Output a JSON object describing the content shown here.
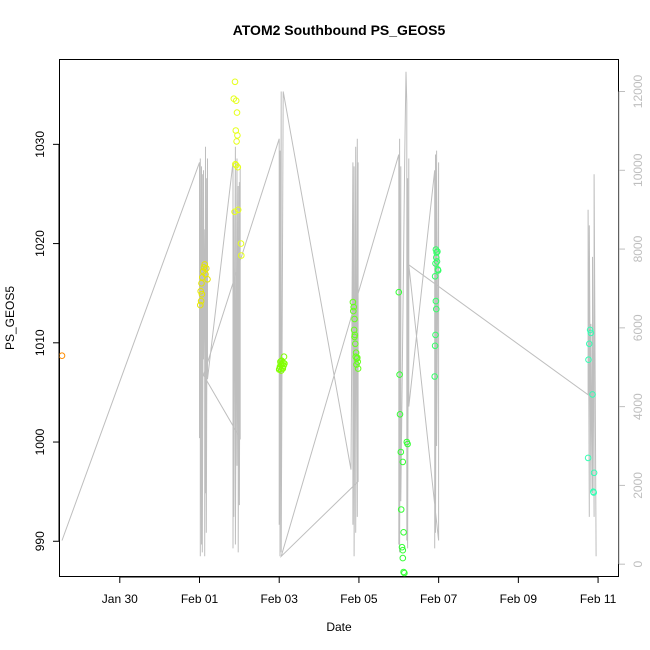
{
  "chart_data": {
    "type": "scatter",
    "title": "ATOM2 Southbound PS_GEOS5",
    "xlabel": "Date",
    "ylabel": "PS_GEOS5",
    "x_ticks": [
      {
        "value": 2.0,
        "label": "Jan 30"
      },
      {
        "value": 4.0,
        "label": "Feb 01"
      },
      {
        "value": 6.0,
        "label": "Feb 03"
      },
      {
        "value": 8.0,
        "label": "Feb 05"
      },
      {
        "value": 10.0,
        "label": "Feb 07"
      },
      {
        "value": 12.0,
        "label": "Feb 09"
      },
      {
        "value": 14.0,
        "label": "Feb 11"
      }
    ],
    "xlim": [
      0.5,
      14.5
    ],
    "y_ticks": [
      {
        "value": 990,
        "label": "990"
      },
      {
        "value": 1000,
        "label": "1000"
      },
      {
        "value": 1010,
        "label": "1010"
      },
      {
        "value": 1020,
        "label": "1020"
      },
      {
        "value": 1030,
        "label": "1030"
      }
    ],
    "ylim": [
      986.5,
      1038.5
    ],
    "y2_ticks": [
      {
        "value": 0,
        "label": "0"
      },
      {
        "value": 2000,
        "label": "2000"
      },
      {
        "value": 4000,
        "label": "4000"
      },
      {
        "value": 6000,
        "label": "6000"
      },
      {
        "value": 8000,
        "label": "8000"
      },
      {
        "value": 10000,
        "label": "10000"
      },
      {
        "value": 12000,
        "label": "12000"
      }
    ],
    "y2lim": [
      -300,
      12800
    ],
    "grid": false,
    "points": [
      {
        "x": 0.55,
        "y": 1008.7,
        "color": "#ff8c00"
      },
      {
        "x": 4.02,
        "y": 1013.8,
        "color": "#e6e600"
      },
      {
        "x": 4.04,
        "y": 1014.2,
        "color": "#e6e600"
      },
      {
        "x": 4.05,
        "y": 1016.0,
        "color": "#e6e600"
      },
      {
        "x": 4.07,
        "y": 1016.6,
        "color": "#e6e600"
      },
      {
        "x": 4.09,
        "y": 1017.2,
        "color": "#e6e600"
      },
      {
        "x": 4.11,
        "y": 1017.6,
        "color": "#e6e600"
      },
      {
        "x": 4.13,
        "y": 1017.9,
        "color": "#e6e600"
      },
      {
        "x": 4.15,
        "y": 1016.9,
        "color": "#e6e600"
      },
      {
        "x": 4.17,
        "y": 1017.5,
        "color": "#e6e600"
      },
      {
        "x": 4.2,
        "y": 1016.4,
        "color": "#e6e600"
      },
      {
        "x": 4.03,
        "y": 1015.2,
        "color": "#e6e600"
      },
      {
        "x": 4.06,
        "y": 1014.9,
        "color": "#e6e600"
      },
      {
        "x": 4.89,
        "y": 1036.3,
        "color": "#e6ff1a"
      },
      {
        "x": 4.86,
        "y": 1034.6,
        "color": "#e6ff1a"
      },
      {
        "x": 4.92,
        "y": 1034.4,
        "color": "#e6ff1a"
      },
      {
        "x": 4.94,
        "y": 1033.2,
        "color": "#e6ff1a"
      },
      {
        "x": 4.91,
        "y": 1031.4,
        "color": "#e6ff1a"
      },
      {
        "x": 4.95,
        "y": 1030.9,
        "color": "#e6ff1a"
      },
      {
        "x": 4.93,
        "y": 1030.3,
        "color": "#e6ff1a"
      },
      {
        "x": 4.9,
        "y": 1028.0,
        "color": "#e6ff1a"
      },
      {
        "x": 4.96,
        "y": 1027.7,
        "color": "#e6ff1a"
      },
      {
        "x": 4.92,
        "y": 1027.9,
        "color": "#e6ff1a"
      },
      {
        "x": 4.88,
        "y": 1023.2,
        "color": "#e6ff1a"
      },
      {
        "x": 4.97,
        "y": 1023.4,
        "color": "#e6ff1a"
      },
      {
        "x": 5.04,
        "y": 1020.0,
        "color": "#e6ff1a"
      },
      {
        "x": 5.05,
        "y": 1018.8,
        "color": "#e6ff1a"
      },
      {
        "x": 6.0,
        "y": 1007.3,
        "color": "#80ff00"
      },
      {
        "x": 6.02,
        "y": 1007.6,
        "color": "#80ff00"
      },
      {
        "x": 6.04,
        "y": 1007.9,
        "color": "#80ff00"
      },
      {
        "x": 6.06,
        "y": 1008.2,
        "color": "#80ff00"
      },
      {
        "x": 6.08,
        "y": 1007.5,
        "color": "#80ff00"
      },
      {
        "x": 6.1,
        "y": 1008.0,
        "color": "#80ff00"
      },
      {
        "x": 6.12,
        "y": 1008.6,
        "color": "#80ff00"
      },
      {
        "x": 6.05,
        "y": 1007.2,
        "color": "#80ff00"
      },
      {
        "x": 6.07,
        "y": 1007.8,
        "color": "#80ff00"
      },
      {
        "x": 6.09,
        "y": 1007.4,
        "color": "#80ff00"
      },
      {
        "x": 6.03,
        "y": 1008.1,
        "color": "#80ff00"
      },
      {
        "x": 6.11,
        "y": 1007.7,
        "color": "#80ff00"
      },
      {
        "x": 6.13,
        "y": 1007.9,
        "color": "#80ff00"
      },
      {
        "x": 6.01,
        "y": 1007.4,
        "color": "#80ff00"
      },
      {
        "x": 7.85,
        "y": 1014.1,
        "color": "#66ff1a"
      },
      {
        "x": 7.87,
        "y": 1013.6,
        "color": "#66ff1a"
      },
      {
        "x": 7.86,
        "y": 1013.2,
        "color": "#66ff1a"
      },
      {
        "x": 7.89,
        "y": 1012.4,
        "color": "#66ff1a"
      },
      {
        "x": 7.88,
        "y": 1011.3,
        "color": "#66ff1a"
      },
      {
        "x": 7.9,
        "y": 1010.8,
        "color": "#66ff1a"
      },
      {
        "x": 7.91,
        "y": 1009.9,
        "color": "#66ff1a"
      },
      {
        "x": 7.93,
        "y": 1009.0,
        "color": "#66ff1a"
      },
      {
        "x": 7.92,
        "y": 1008.6,
        "color": "#66ff1a"
      },
      {
        "x": 7.95,
        "y": 1008.4,
        "color": "#66ff1a"
      },
      {
        "x": 7.97,
        "y": 1008.1,
        "color": "#66ff1a"
      },
      {
        "x": 7.98,
        "y": 1007.4,
        "color": "#66ff1a"
      },
      {
        "x": 7.94,
        "y": 1007.8,
        "color": "#66ff1a"
      },
      {
        "x": 7.96,
        "y": 1008.5,
        "color": "#66ff1a"
      },
      {
        "x": 7.89,
        "y": 1010.6,
        "color": "#66ff1a"
      },
      {
        "x": 9.0,
        "y": 1015.1,
        "color": "#33ff33"
      },
      {
        "x": 9.02,
        "y": 1006.8,
        "color": "#33ff33"
      },
      {
        "x": 9.03,
        "y": 1002.8,
        "color": "#33ff33"
      },
      {
        "x": 9.05,
        "y": 999.0,
        "color": "#33ff33"
      },
      {
        "x": 9.1,
        "y": 998.0,
        "color": "#33ff33"
      },
      {
        "x": 9.2,
        "y": 1000.0,
        "color": "#33ff33"
      },
      {
        "x": 9.22,
        "y": 999.8,
        "color": "#33ff33"
      },
      {
        "x": 9.06,
        "y": 993.2,
        "color": "#33ff33"
      },
      {
        "x": 9.12,
        "y": 990.9,
        "color": "#33ff33"
      },
      {
        "x": 9.08,
        "y": 989.4,
        "color": "#33ff33"
      },
      {
        "x": 9.1,
        "y": 989.1,
        "color": "#33ff33"
      },
      {
        "x": 9.1,
        "y": 988.3,
        "color": "#33ff33"
      },
      {
        "x": 9.12,
        "y": 986.9,
        "color": "#33ff33"
      },
      {
        "x": 9.14,
        "y": 986.8,
        "color": "#33ff33"
      },
      {
        "x": 9.93,
        "y": 1019.4,
        "color": "#33ff66"
      },
      {
        "x": 9.95,
        "y": 1019.1,
        "color": "#33ff66"
      },
      {
        "x": 9.97,
        "y": 1019.2,
        "color": "#33ff66"
      },
      {
        "x": 9.94,
        "y": 1018.6,
        "color": "#33ff66"
      },
      {
        "x": 9.96,
        "y": 1018.2,
        "color": "#33ff66"
      },
      {
        "x": 9.92,
        "y": 1018.0,
        "color": "#33ff66"
      },
      {
        "x": 9.98,
        "y": 1017.4,
        "color": "#33ff66"
      },
      {
        "x": 9.99,
        "y": 1017.3,
        "color": "#33ff66"
      },
      {
        "x": 9.91,
        "y": 1016.7,
        "color": "#33ff66"
      },
      {
        "x": 9.93,
        "y": 1014.2,
        "color": "#33ff66"
      },
      {
        "x": 9.94,
        "y": 1013.4,
        "color": "#33ff66"
      },
      {
        "x": 9.92,
        "y": 1010.8,
        "color": "#33ff66"
      },
      {
        "x": 9.91,
        "y": 1009.7,
        "color": "#33ff66"
      },
      {
        "x": 9.9,
        "y": 1006.6,
        "color": "#33ff66"
      },
      {
        "x": 13.8,
        "y": 1011.3,
        "color": "#33ffb3"
      },
      {
        "x": 13.82,
        "y": 1011.0,
        "color": "#33ffb3"
      },
      {
        "x": 13.78,
        "y": 1009.9,
        "color": "#33ffb3"
      },
      {
        "x": 13.76,
        "y": 1008.3,
        "color": "#33ffb3"
      },
      {
        "x": 13.86,
        "y": 1004.8,
        "color": "#33ffb3"
      },
      {
        "x": 13.75,
        "y": 998.4,
        "color": "#33ffb3"
      },
      {
        "x": 13.9,
        "y": 996.9,
        "color": "#33ffb3"
      },
      {
        "x": 13.88,
        "y": 995.0,
        "color": "#33ffb3"
      },
      {
        "x": 13.89,
        "y": 994.9,
        "color": "#33ffb3"
      }
    ],
    "altitude_series": {
      "axis": "right",
      "color": "#bebebe",
      "x": [
        0.55,
        4.0,
        4.0,
        4.02,
        4.02,
        4.05,
        4.05,
        4.07,
        4.07,
        4.1,
        4.1,
        4.13,
        4.13,
        4.15,
        4.15,
        4.17,
        4.17,
        4.2,
        4.2,
        4.84,
        4.84,
        4.86,
        4.86,
        4.9,
        4.9,
        4.94,
        4.94,
        4.97,
        4.97,
        5.0,
        5.0,
        5.02,
        5.02,
        4.1,
        6.0,
        6.0,
        6.02,
        6.02,
        6.05,
        6.05,
        6.1,
        7.8,
        7.85,
        7.85,
        7.88,
        7.88,
        7.92,
        7.92,
        7.96,
        7.96,
        7.98,
        7.98,
        6.05,
        9.0,
        9.0,
        9.02,
        9.02,
        9.05,
        9.05,
        9.15,
        9.18,
        9.2,
        9.2,
        9.22,
        9.22,
        9.25,
        9.25,
        9.9,
        9.9,
        9.92,
        9.92,
        9.95,
        9.95,
        10.0,
        10.0,
        9.25,
        13.75,
        13.75,
        13.78,
        13.78,
        13.82,
        13.82,
        13.86,
        13.86,
        13.9,
        13.9,
        13.95
      ],
      "y": [
        600,
        10200,
        3200,
        10300,
        200,
        10100,
        500,
        9900,
        300,
        10000,
        5200,
        8500,
        200,
        10600,
        1800,
        9800,
        800,
        10300,
        4700,
        10200,
        400,
        9000,
        1200,
        10600,
        500,
        10300,
        2500,
        9600,
        300,
        9700,
        1500,
        10100,
        3200,
        4800,
        10800,
        1000,
        10500,
        200,
        12000,
        300,
        12000,
        2400,
        10200,
        1000,
        10100,
        200,
        10600,
        800,
        10800,
        1200,
        10200,
        2100,
        200,
        10400,
        500,
        10800,
        300,
        10100,
        1600,
        10500,
        12500,
        11700,
        600,
        9800,
        400,
        10300,
        4000,
        10000,
        400,
        10400,
        800,
        10500,
        3000,
        10200,
        600,
        7600,
        4300,
        9000,
        1200,
        8600,
        1800,
        6100,
        1800,
        7800,
        1200,
        9900,
        200
      ]
    }
  }
}
